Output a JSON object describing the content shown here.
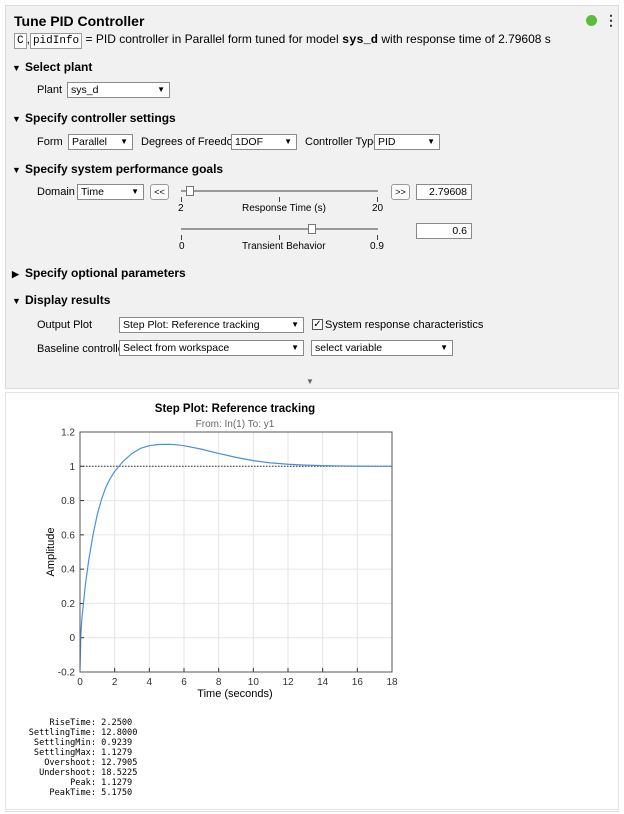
{
  "header": {
    "title": "Tune PID Controller",
    "output_tokens": [
      "C",
      "pidInfo"
    ],
    "token_separator": ",",
    "equals": "=",
    "desc_prefix": "PID controller in Parallel form tuned for model",
    "desc_model": "sys_d",
    "desc_suffix": "with response time of 2.79608 s",
    "status_color": "#5cbc3c",
    "menu_icon": "kebab-menu-icon"
  },
  "sections": {
    "select_plant": "Select plant",
    "controller_settings": "Specify controller settings",
    "performance_goals": "Specify system performance goals",
    "optional_params": "Specify optional parameters",
    "display_results": "Display results"
  },
  "plant": {
    "label": "Plant",
    "value": "sys_d"
  },
  "controller": {
    "form_label": "Form",
    "form_value": "Parallel",
    "dof_label": "Degrees of Freedom",
    "dof_value": "1DOF",
    "type_label": "Controller Type",
    "type_value": "PID"
  },
  "goals": {
    "domain_label": "Domain",
    "domain_value": "Time",
    "prev_button": "<<",
    "next_button": ">>",
    "response_time": {
      "min": "2",
      "max": "20",
      "label": "Response Time (s)",
      "value": "2.79608",
      "level": 0.044
    },
    "transient": {
      "min": "0",
      "max": "0.9",
      "label": "Transient Behavior",
      "value": "0.6",
      "level": 0.667
    }
  },
  "display": {
    "output_plot_label": "Output Plot",
    "output_plot_value": "Step Plot: Reference tracking",
    "characteristics_label": "System response characteristics",
    "characteristics_checked": true,
    "baseline_label": "Baseline controller",
    "baseline_value": "Select from workspace",
    "variable_value": "select variable"
  },
  "chart_data": {
    "type": "line",
    "title": "Step Plot: Reference tracking",
    "subtitle": "From: In(1)  To: y1",
    "xlabel": "Time (seconds)",
    "ylabel": "Amplitude",
    "xlim": [
      0,
      18
    ],
    "ylim": [
      -0.2,
      1.2
    ],
    "xticks": [
      "0",
      "2",
      "4",
      "6",
      "8",
      "10",
      "12",
      "14",
      "16",
      "18"
    ],
    "yticks": [
      "-0.2",
      "0",
      "0.2",
      "0.4",
      "0.6",
      "0.8",
      "1",
      "1.2"
    ],
    "grid": true,
    "reference_line": 1,
    "series": [
      {
        "color": "#4a90d9",
        "x": [
          0,
          0.05,
          0.1,
          0.3,
          0.5,
          0.75,
          1.0,
          1.25,
          1.5,
          1.75,
          2.0,
          2.25,
          2.5,
          3.0,
          3.5,
          4.0,
          4.5,
          5.0,
          5.175,
          5.5,
          6.0,
          7.0,
          8.0,
          9.0,
          10.0,
          11.0,
          12.0,
          13.0,
          14.0,
          15.0,
          16.0,
          17.0,
          18.0
        ],
        "y": [
          -0.18,
          0.02,
          0.1,
          0.3,
          0.45,
          0.6,
          0.72,
          0.81,
          0.88,
          0.93,
          0.97,
          1.0,
          1.03,
          1.075,
          1.105,
          1.12,
          1.127,
          1.128,
          1.1279,
          1.126,
          1.12,
          1.1,
          1.075,
          1.052,
          1.033,
          1.02,
          1.012,
          1.007,
          1.004,
          1.002,
          1.001,
          1.0,
          1.0
        ]
      }
    ]
  },
  "stats": [
    {
      "key": "RiseTime",
      "value": "2.2500"
    },
    {
      "key": "SettlingTime",
      "value": "12.8000"
    },
    {
      "key": "SettlingMin",
      "value": "0.9239"
    },
    {
      "key": "SettlingMax",
      "value": "1.1279"
    },
    {
      "key": "Overshoot",
      "value": "12.7905"
    },
    {
      "key": "Undershoot",
      "value": "18.5225"
    },
    {
      "key": "Peak",
      "value": "1.1279"
    },
    {
      "key": "PeakTime",
      "value": "5.1750"
    }
  ]
}
